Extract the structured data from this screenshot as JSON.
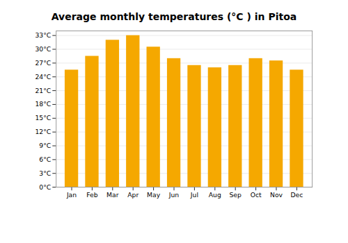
{
  "chart_data": {
    "type": "bar",
    "title": "Average monthly temperatures (°C ) in Pitoa",
    "categories": [
      "Jan",
      "Feb",
      "Mar",
      "Apr",
      "May",
      "Jun",
      "Jul",
      "Aug",
      "Sep",
      "Oct",
      "Nov",
      "Dec"
    ],
    "values": [
      25.5,
      28.5,
      32.0,
      33.0,
      30.5,
      28.0,
      26.5,
      26.0,
      26.5,
      28.0,
      27.5,
      25.5
    ],
    "color": "#F5A800",
    "ylim": [
      0,
      34
    ],
    "yticks": [
      {
        "value": 0,
        "label": "0°C"
      },
      {
        "value": 3,
        "label": "3°C"
      },
      {
        "value": 6,
        "label": "6°C"
      },
      {
        "value": 9,
        "label": "9°C"
      },
      {
        "value": 12,
        "label": "12°C"
      },
      {
        "value": 15,
        "label": "15°C"
      },
      {
        "value": 18,
        "label": "18°C"
      },
      {
        "value": 21,
        "label": "21°C"
      },
      {
        "value": 24,
        "label": "24°C"
      },
      {
        "value": 27,
        "label": "27°C"
      },
      {
        "value": 30,
        "label": "30°C"
      },
      {
        "value": 33,
        "label": "33°C"
      }
    ],
    "grid": true
  }
}
